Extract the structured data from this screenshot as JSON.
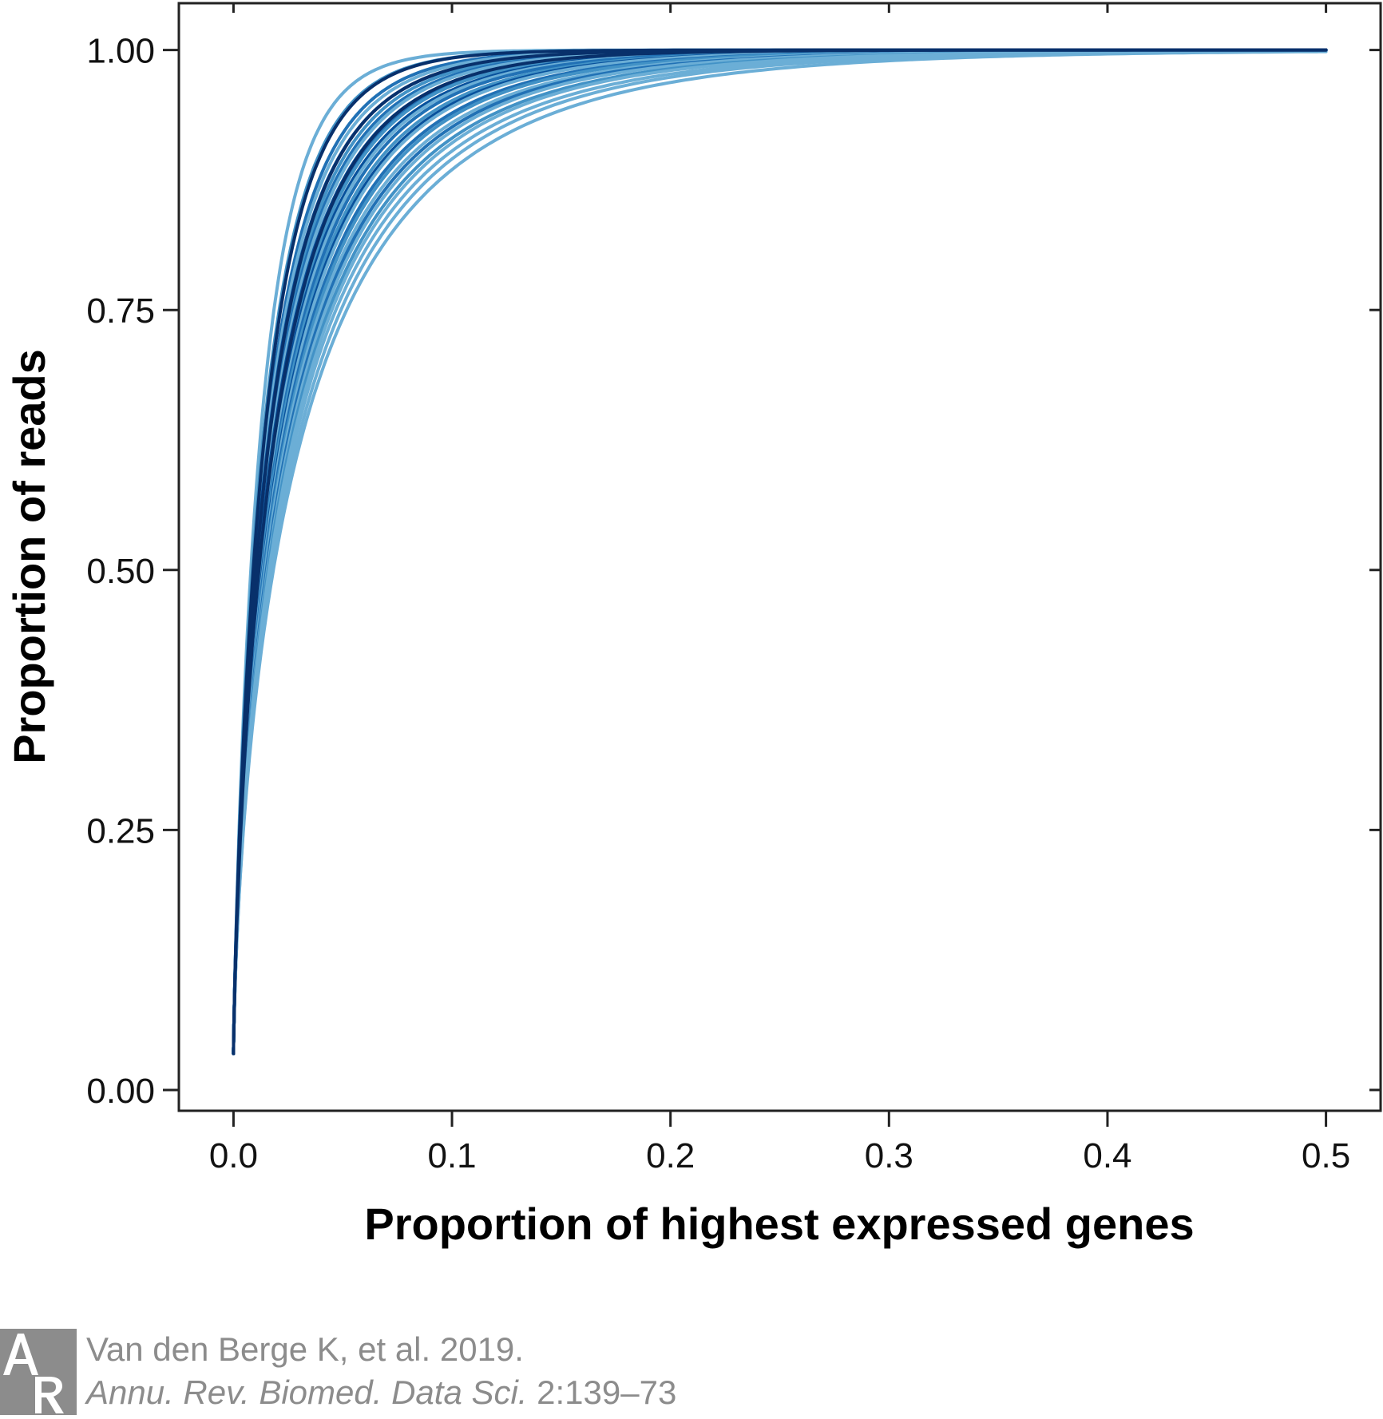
{
  "chart_data": {
    "type": "line",
    "xlabel": "Proportion of highest expressed genes",
    "ylabel": "Proportion of reads",
    "xlim": [
      -0.025,
      0.525
    ],
    "ylim": [
      -0.02,
      1.045
    ],
    "x_ticks": [
      0.0,
      0.1,
      0.2,
      0.3,
      0.4,
      0.5
    ],
    "x_tick_labels": [
      "0.0",
      "0.1",
      "0.2",
      "0.3",
      "0.4",
      "0.5"
    ],
    "y_ticks": [
      0.0,
      0.25,
      0.5,
      0.75,
      1.0
    ],
    "y_tick_labels": [
      "0.00",
      "0.25",
      "0.50",
      "0.75",
      "1.00"
    ],
    "grid": false,
    "legend": "none",
    "curve_model": "y = 1 - (1 - y0) * exp(-(x / s)^p)",
    "series": [
      {
        "y0": 0.035,
        "s": 0.013,
        "p": 0.85,
        "color": "#6baed6"
      },
      {
        "y0": 0.035,
        "s": 0.0145,
        "p": 0.82,
        "color": "#4292c6"
      },
      {
        "y0": 0.035,
        "s": 0.016,
        "p": 0.8,
        "color": "#2171b5"
      },
      {
        "y0": 0.035,
        "s": 0.0165,
        "p": 0.79,
        "color": "#6baed6"
      },
      {
        "y0": 0.035,
        "s": 0.0172,
        "p": 0.78,
        "color": "#08519c"
      },
      {
        "y0": 0.035,
        "s": 0.018,
        "p": 0.78,
        "color": "#4292c6"
      },
      {
        "y0": 0.035,
        "s": 0.0185,
        "p": 0.77,
        "color": "#2171b5"
      },
      {
        "y0": 0.035,
        "s": 0.019,
        "p": 0.77,
        "color": "#6baed6"
      },
      {
        "y0": 0.035,
        "s": 0.0196,
        "p": 0.76,
        "color": "#08519c"
      },
      {
        "y0": 0.035,
        "s": 0.02,
        "p": 0.76,
        "color": "#2171b5"
      },
      {
        "y0": 0.035,
        "s": 0.0205,
        "p": 0.76,
        "color": "#4292c6"
      },
      {
        "y0": 0.035,
        "s": 0.021,
        "p": 0.75,
        "color": "#08519c"
      },
      {
        "y0": 0.035,
        "s": 0.0215,
        "p": 0.75,
        "color": "#6baed6"
      },
      {
        "y0": 0.035,
        "s": 0.0222,
        "p": 0.75,
        "color": "#2171b5"
      },
      {
        "y0": 0.035,
        "s": 0.0228,
        "p": 0.74,
        "color": "#4292c6"
      },
      {
        "y0": 0.035,
        "s": 0.0235,
        "p": 0.74,
        "color": "#08519c"
      },
      {
        "y0": 0.035,
        "s": 0.024,
        "p": 0.74,
        "color": "#6baed6"
      },
      {
        "y0": 0.035,
        "s": 0.0248,
        "p": 0.73,
        "color": "#2171b5"
      },
      {
        "y0": 0.035,
        "s": 0.0255,
        "p": 0.73,
        "color": "#4292c6"
      },
      {
        "y0": 0.035,
        "s": 0.0262,
        "p": 0.72,
        "color": "#6baed6"
      },
      {
        "y0": 0.035,
        "s": 0.027,
        "p": 0.72,
        "color": "#2171b5"
      },
      {
        "y0": 0.035,
        "s": 0.0278,
        "p": 0.72,
        "color": "#6baed6"
      },
      {
        "y0": 0.035,
        "s": 0.0286,
        "p": 0.71,
        "color": "#4292c6"
      },
      {
        "y0": 0.035,
        "s": 0.0295,
        "p": 0.71,
        "color": "#6baed6"
      },
      {
        "y0": 0.035,
        "s": 0.0305,
        "p": 0.7,
        "color": "#6baed6"
      },
      {
        "y0": 0.035,
        "s": 0.032,
        "p": 0.7,
        "color": "#6baed6"
      },
      {
        "y0": 0.035,
        "s": 0.0335,
        "p": 0.69,
        "color": "#6baed6"
      },
      {
        "y0": 0.035,
        "s": 0.015,
        "p": 0.83,
        "color": "#08306b"
      },
      {
        "y0": 0.035,
        "s": 0.0175,
        "p": 0.79,
        "color": "#08306b"
      },
      {
        "y0": 0.035,
        "s": 0.02,
        "p": 0.77,
        "color": "#08306b"
      }
    ]
  },
  "credit": {
    "line1": "Van den Berge K, et al. 2019.",
    "journal": "Annu. Rev. Biomed. Data Sci.",
    "volume_pages": " 2:139–73"
  },
  "logo_color": "#8c8c8c"
}
